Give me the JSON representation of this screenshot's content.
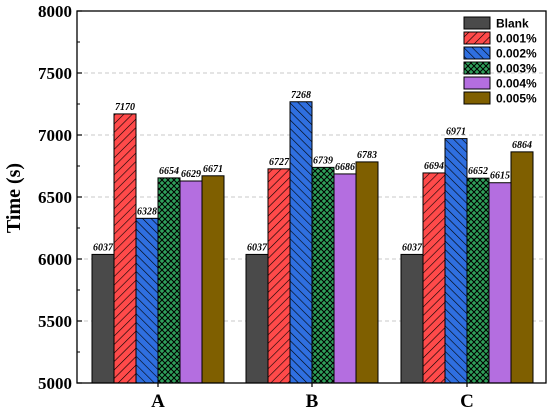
{
  "chart_data": {
    "type": "bar",
    "ylabel": "Time (s)",
    "categories": [
      "A",
      "B",
      "C"
    ],
    "ylim": [
      5000,
      8000
    ],
    "yticks": [
      5000,
      5500,
      6000,
      6500,
      7000,
      7500,
      8000
    ],
    "grid": "horizontal-dashed",
    "legend_position": "top-right",
    "series": [
      {
        "name": "Blank",
        "values": [
          6037,
          6037,
          6037
        ],
        "color": "#4a4a4a",
        "pattern": "solid"
      },
      {
        "name": "0.001%",
        "values": [
          7170,
          6727,
          6694
        ],
        "color": "#ff4a4a",
        "pattern": "forward-hatch"
      },
      {
        "name": "0.002%",
        "values": [
          6328,
          7268,
          6971
        ],
        "color": "#2f6fe0",
        "pattern": "back-hatch"
      },
      {
        "name": "0.003%",
        "values": [
          6654,
          6739,
          6652
        ],
        "color": "#2f9f5a",
        "pattern": "cross-hatch"
      },
      {
        "name": "0.004%",
        "values": [
          6629,
          6686,
          6615
        ],
        "color": "#b46ee0",
        "pattern": "solid"
      },
      {
        "name": "0.005%",
        "values": [
          6671,
          6783,
          6864
        ],
        "color": "#7f5f00",
        "pattern": "solid"
      }
    ]
  }
}
